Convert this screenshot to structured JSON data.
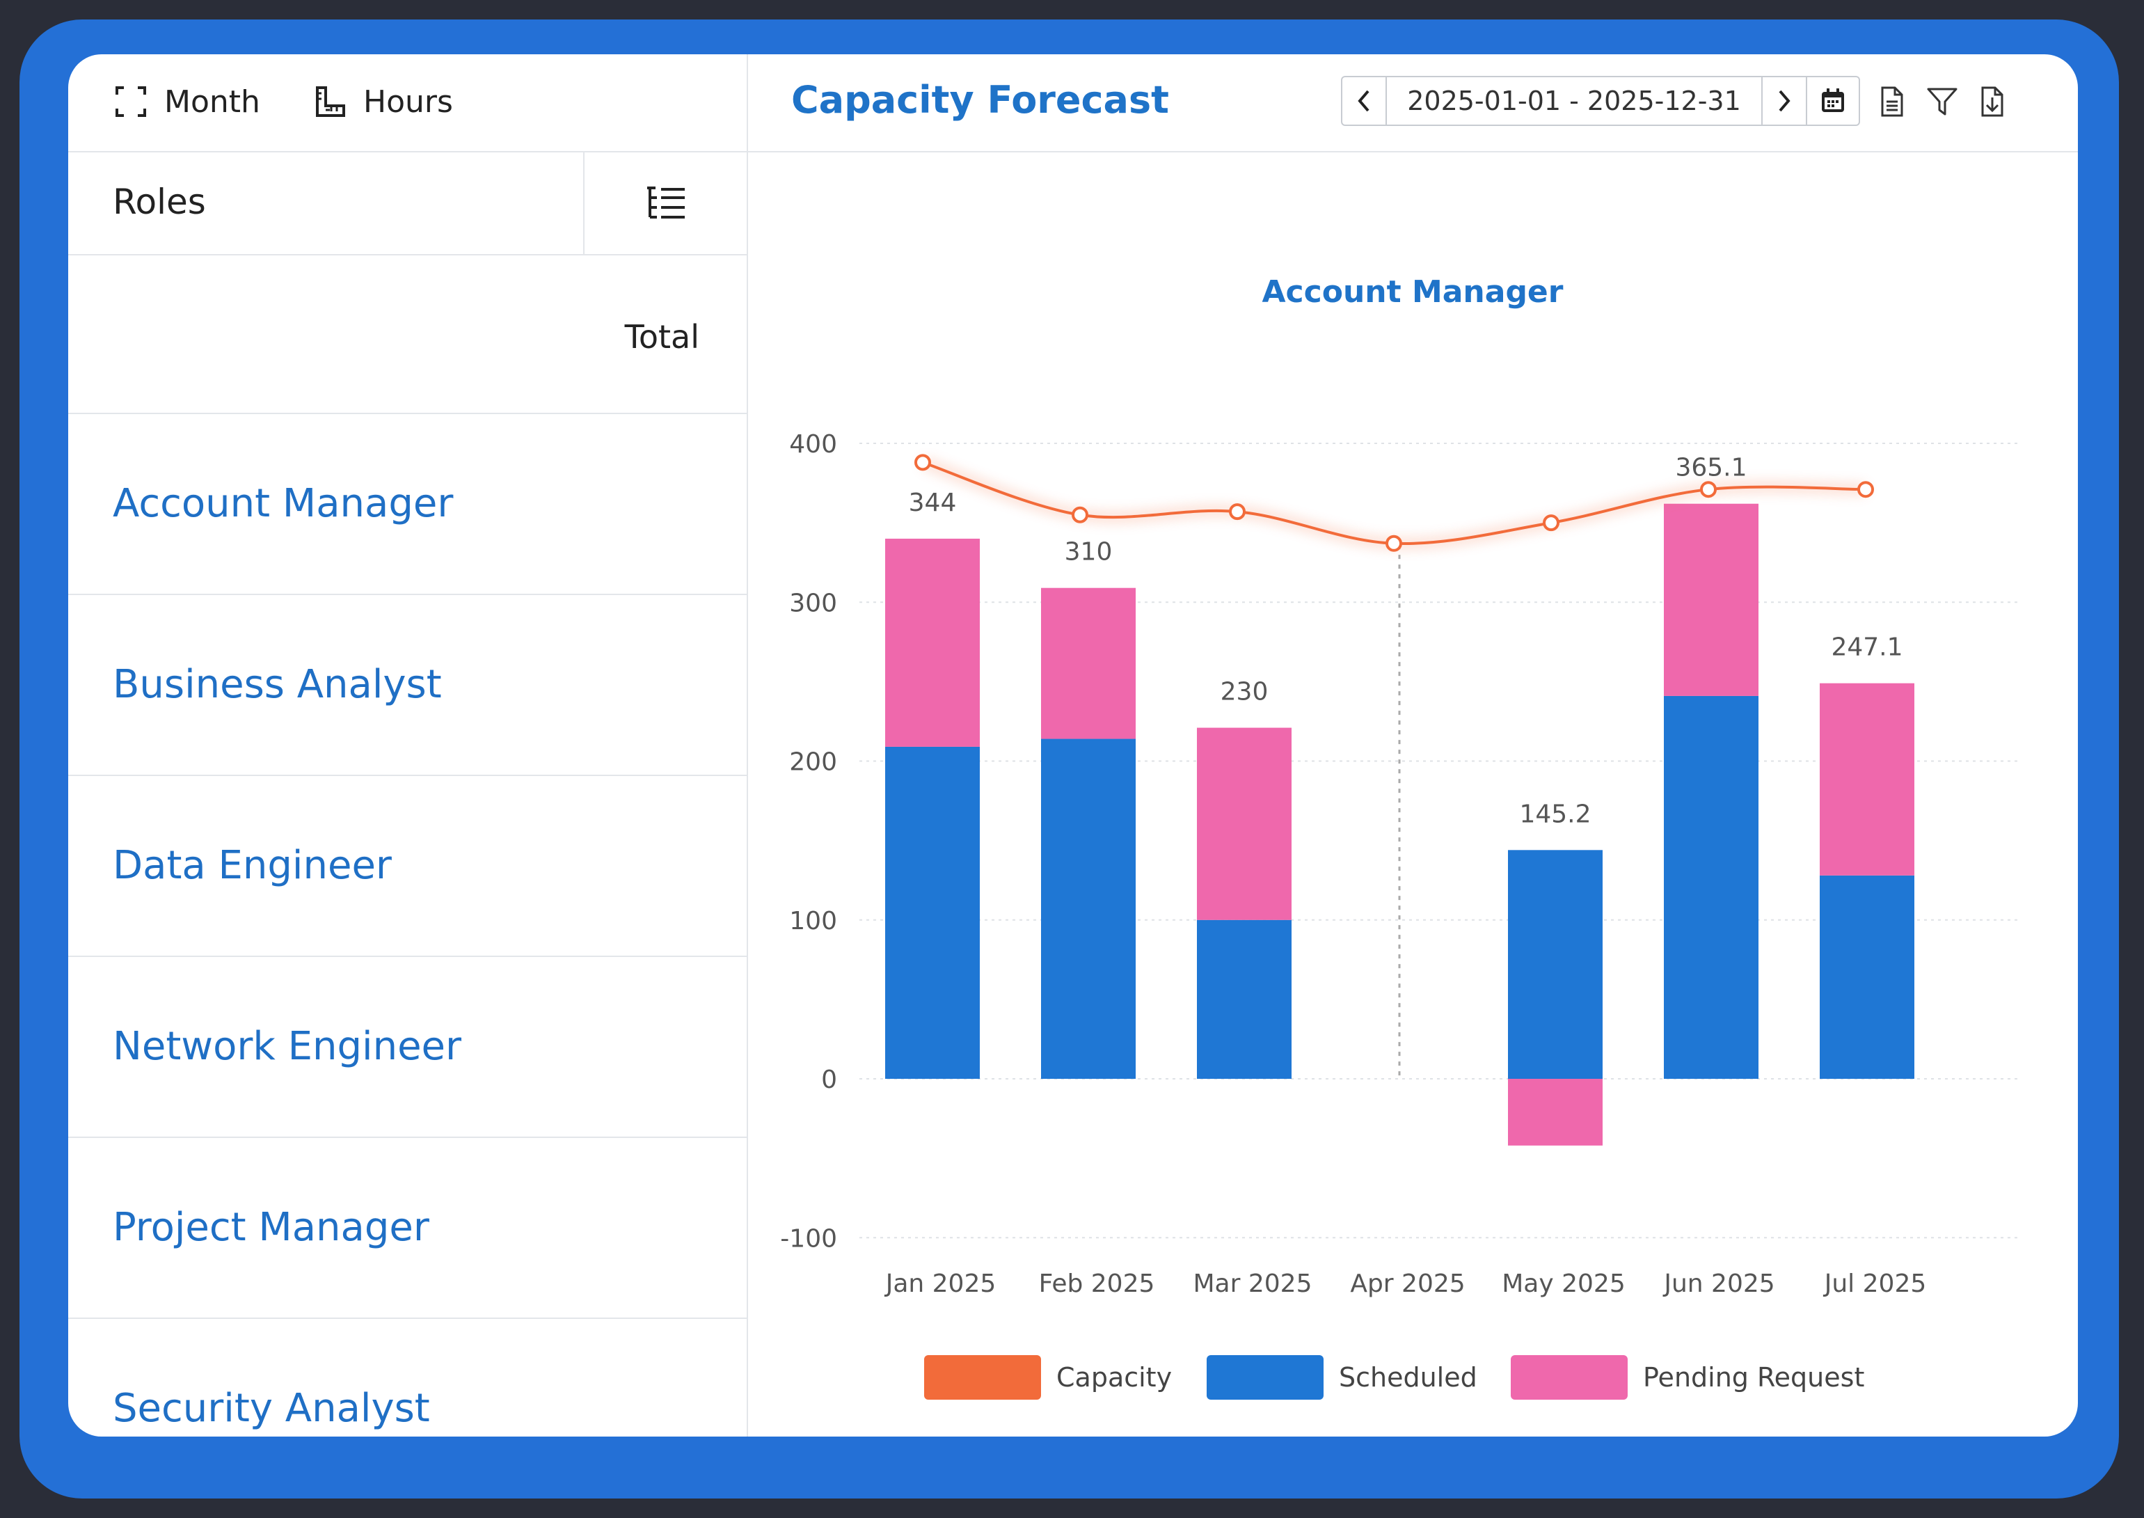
{
  "toolbar": {
    "month_label": "Month",
    "hours_label": "Hours"
  },
  "roles_panel": {
    "header_label": "Roles",
    "total_label": "Total",
    "roles": [
      "Account Manager",
      "Business Analyst",
      "Data Engineer",
      "Network Engineer",
      "Project Manager",
      "Security Analyst"
    ]
  },
  "header": {
    "title": "Capacity Forecast",
    "date_range": "2025-01-01 - 2025-12-31",
    "icons": [
      "chevron-left-icon",
      "chevron-right-icon",
      "calendar-icon",
      "document-icon",
      "filter-icon",
      "download-icon"
    ]
  },
  "colors": {
    "capacity": "#f26b3a",
    "scheduled": "#1f77d4",
    "pending": "#ef68ac",
    "accent": "#1f73c8"
  },
  "chart_data": {
    "type": "bar",
    "title": "Account Manager",
    "categories": [
      "Jan 2025",
      "Feb 2025",
      "Mar 2025",
      "Apr 2025",
      "May 2025",
      "Jun 2025",
      "Jul 2025"
    ],
    "series": [
      {
        "name": "Capacity",
        "kind": "line",
        "values": [
          388,
          355,
          357,
          337,
          350,
          371,
          371
        ]
      },
      {
        "name": "Scheduled",
        "kind": "bar",
        "stacked": true,
        "values": [
          209,
          214,
          100,
          0,
          144,
          241,
          128
        ]
      },
      {
        "name": "Pending Request",
        "kind": "bar",
        "stacked": true,
        "values": [
          131,
          95,
          121,
          0,
          -42,
          121,
          121
        ]
      }
    ],
    "data_labels": [
      "344",
      "310",
      "230",
      "",
      "145.2",
      "365.1",
      "247.1"
    ],
    "yticks": [
      "400",
      "300",
      "200",
      "100",
      "0",
      "-100"
    ],
    "ylim": [
      -100,
      400
    ],
    "legend_position": "bottom",
    "grid": true
  }
}
